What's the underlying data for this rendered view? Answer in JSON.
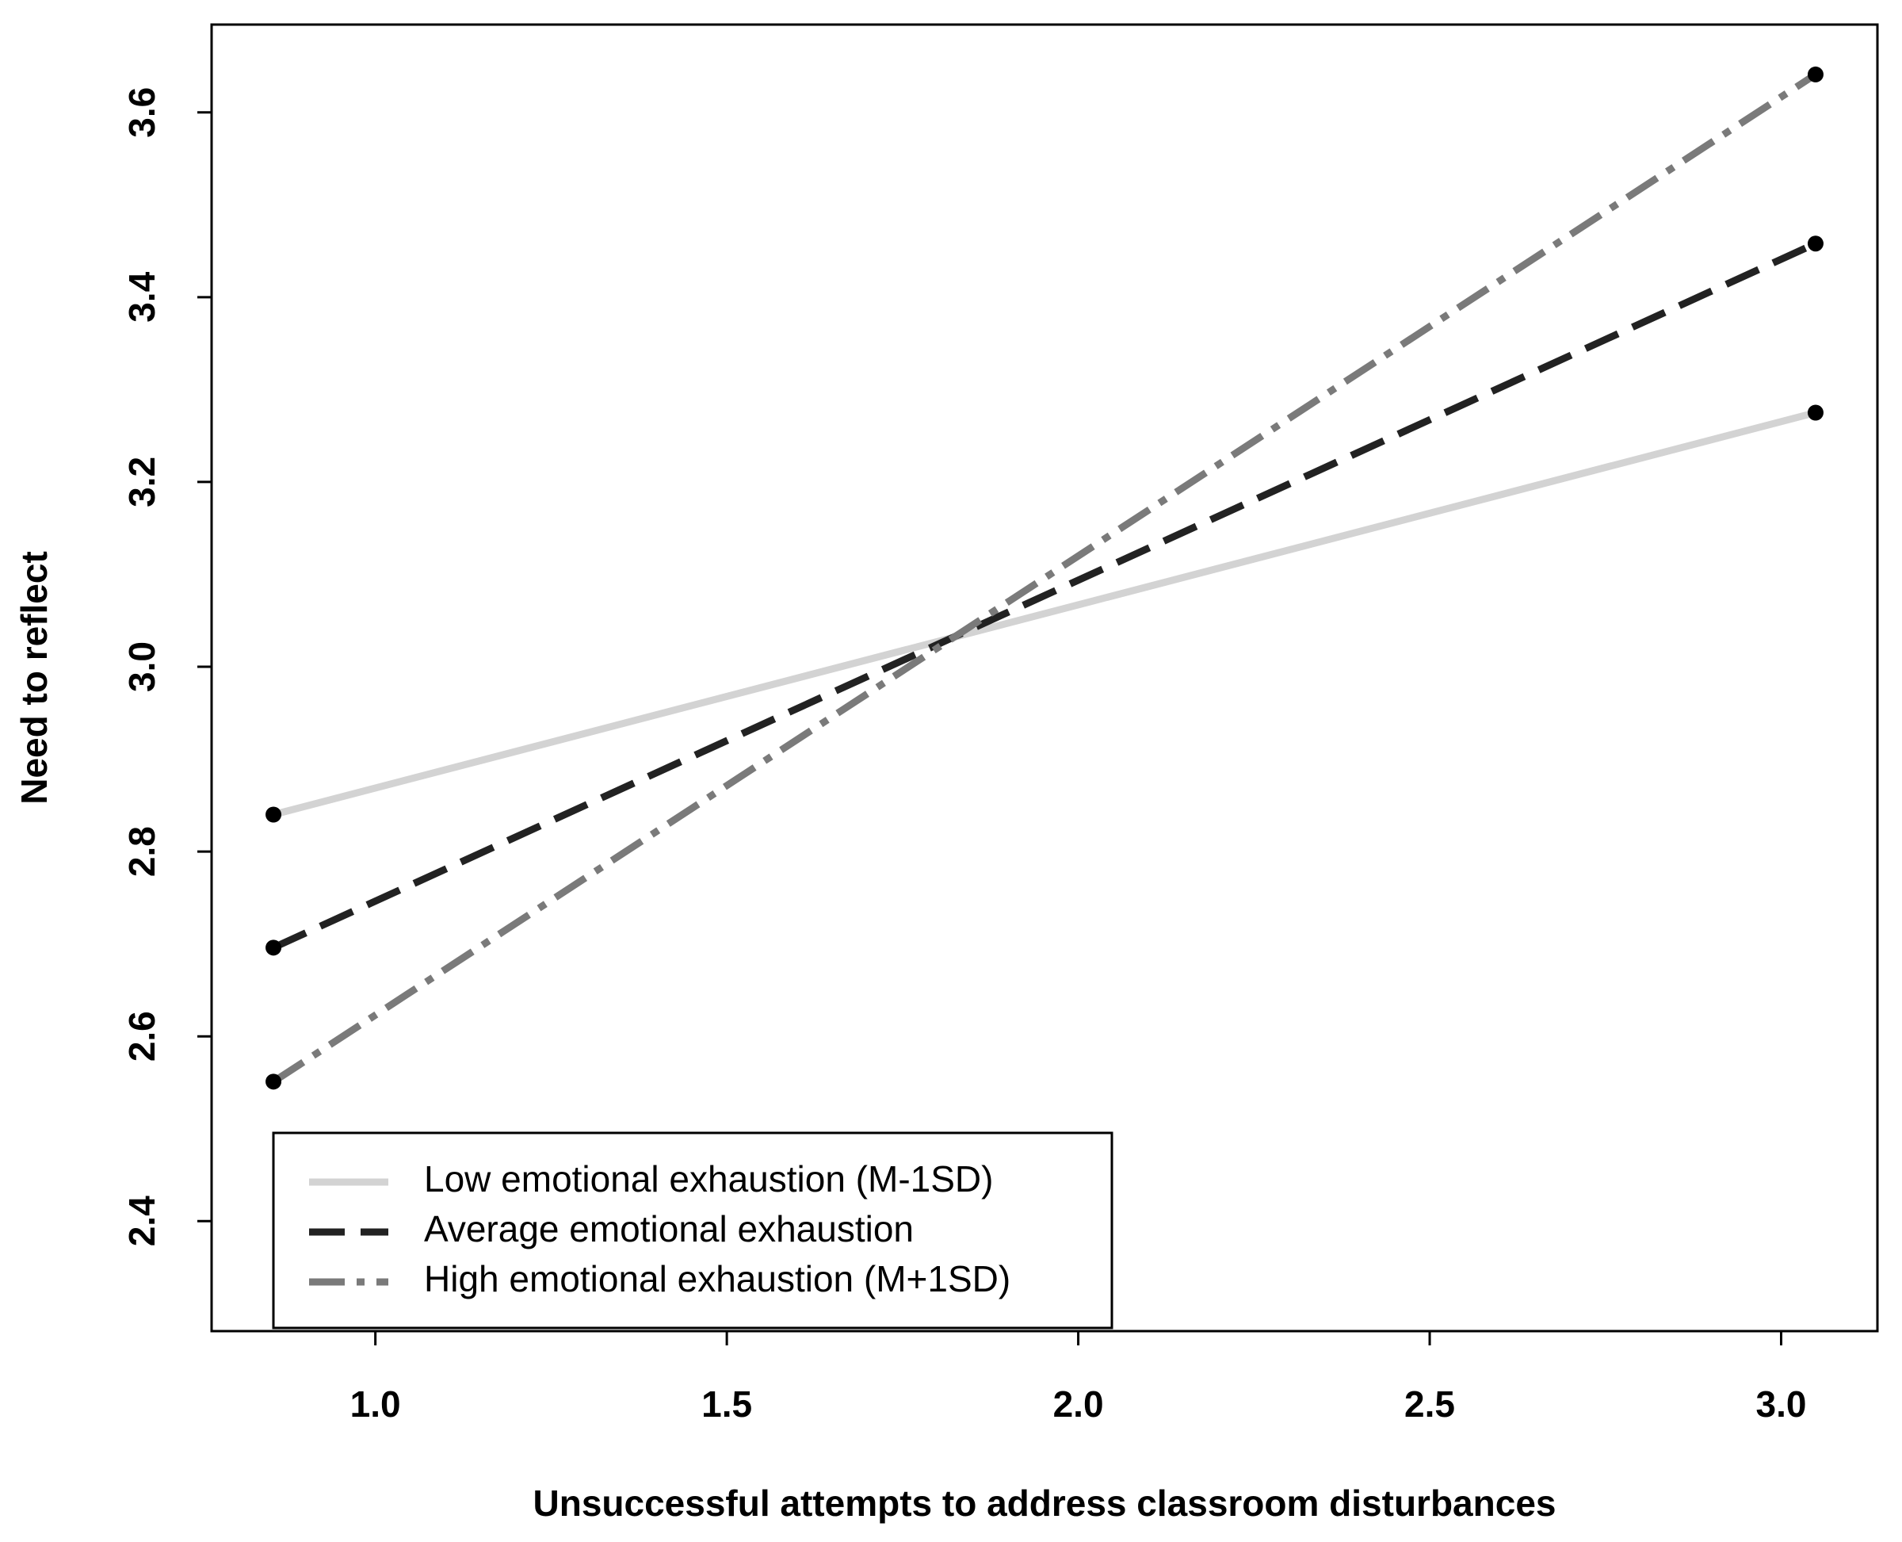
{
  "chart_data": {
    "type": "line",
    "x_label": "Unsuccessful attempts to address classroom disturbances",
    "y_label": "Need to reflect",
    "x": [
      0.855,
      3.049
    ],
    "series": [
      {
        "name": "Low emotional exhaustion (M-1SD)",
        "color": "#d3d3d3",
        "dash": "solid",
        "values": [
          2.84,
          3.275
        ]
      },
      {
        "name": "Average emotional exhaustion",
        "color": "#222222",
        "dash": "dashed",
        "values": [
          2.696,
          3.458
        ]
      },
      {
        "name": "High emotional exhaustion (M+1SD)",
        "color": "#7a7a7a",
        "dash": "dashdot",
        "values": [
          2.551,
          3.641
        ]
      }
    ],
    "marker_color": "#000000",
    "xlim": [
      0.767,
      3.137
    ],
    "ylim": [
      2.281,
      3.695
    ],
    "xticks": [
      {
        "value": 1,
        "label": "1.0"
      },
      {
        "value": 1.5,
        "label": "1.5"
      },
      {
        "value": 2,
        "label": "2.0"
      },
      2.5,
      {
        "value": 3,
        "label": "3.0"
      }
    ],
    "yticks": [
      2.4,
      2.6,
      2.8,
      {
        "value": 3,
        "label": "3.0"
      },
      3.2,
      3.4,
      3.6
    ],
    "legend": "bottom-left"
  }
}
